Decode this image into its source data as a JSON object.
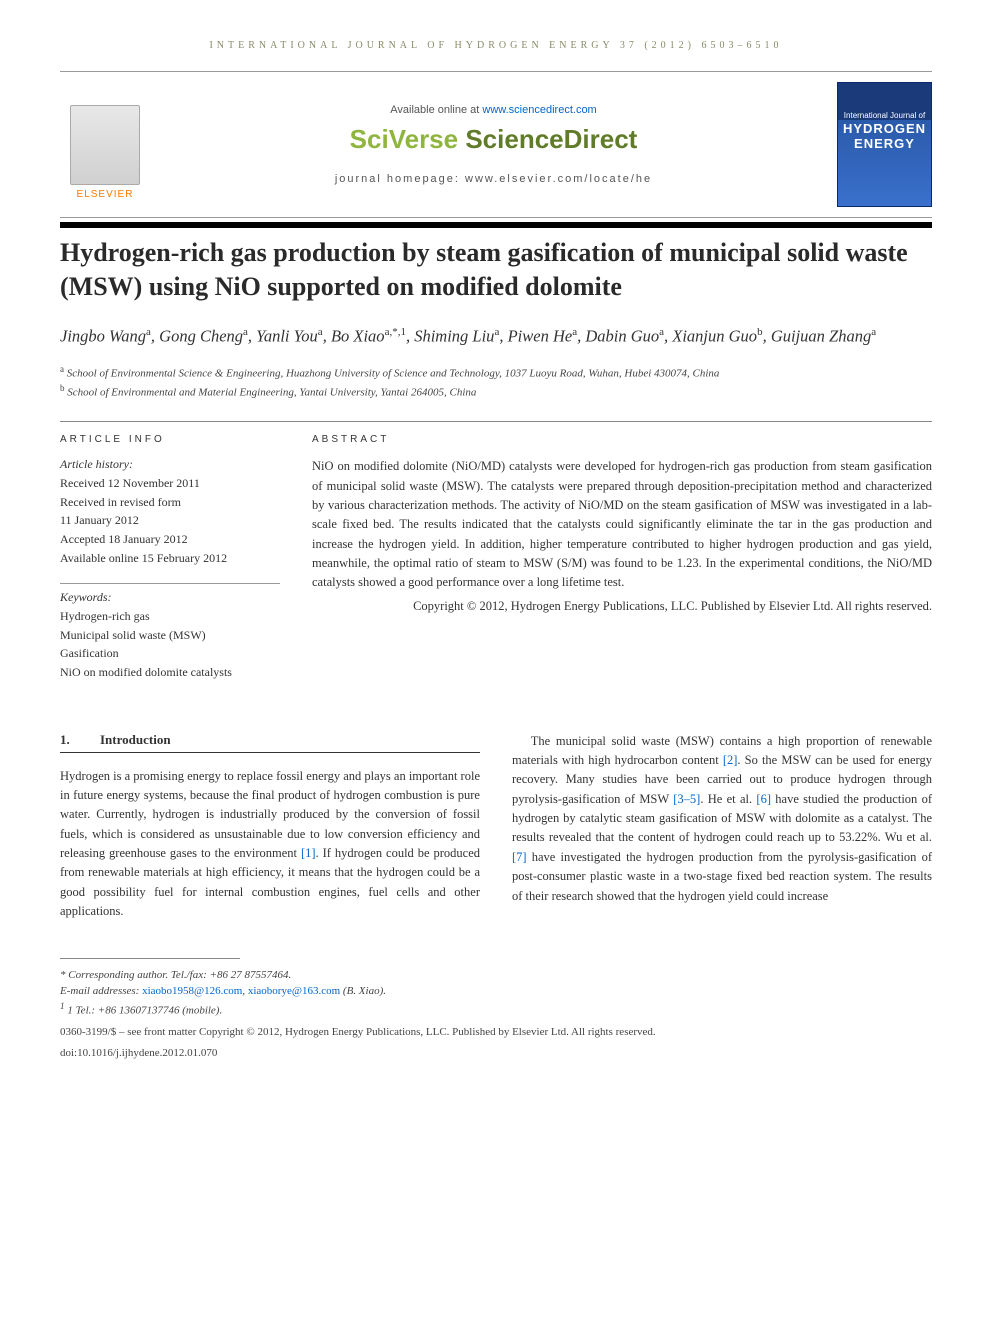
{
  "journal_ref": "INTERNATIONAL JOURNAL OF HYDROGEN ENERGY 37 (2012) 6503–6510",
  "banner": {
    "available": "Available online at ",
    "available_url": "www.sciencedirect.com",
    "brand_a": "SciVerse ",
    "brand_b": "ScienceDirect",
    "homepage": "journal homepage: www.elsevier.com/locate/he",
    "elsevier": "ELSEVIER",
    "cover_small": "International Journal of",
    "cover_big": "HYDROGEN\nENERGY"
  },
  "title": "Hydrogen-rich gas production by steam gasification of municipal solid waste (MSW) using NiO supported on modified dolomite",
  "authors_html": "Jingbo Wang<sup>a</sup>, Gong Cheng<sup>a</sup>, Yanli You<sup>a</sup>, Bo Xiao<sup>a,*,1</sup>, Shiming Liu<sup>a</sup>, Piwen He<sup>a</sup>, Dabin Guo<sup>a</sup>, Xianjun Guo<sup>b</sup>, Guijuan Zhang<sup>a</sup>",
  "affiliations": [
    {
      "sup": "a",
      "text": "School of Environmental Science & Engineering, Huazhong University of Science and Technology, 1037 Luoyu Road, Wuhan, Hubei 430074, China"
    },
    {
      "sup": "b",
      "text": "School of Environmental and Material Engineering, Yantai University, Yantai 264005, China"
    }
  ],
  "info": {
    "heading": "ARTICLE INFO",
    "history_label": "Article history:",
    "history": "Received 12 November 2011\nReceived in revised form\n11 January 2012\nAccepted 18 January 2012\nAvailable online 15 February 2012",
    "keywords_label": "Keywords:",
    "keywords": "Hydrogen-rich gas\nMunicipal solid waste (MSW)\nGasification\nNiO on modified dolomite catalysts"
  },
  "abstract": {
    "heading": "ABSTRACT",
    "text": "NiO on modified dolomite (NiO/MD) catalysts were developed for hydrogen-rich gas production from steam gasification of municipal solid waste (MSW). The catalysts were prepared through deposition-precipitation method and characterized by various characterization methods. The activity of NiO/MD on the steam gasification of MSW was investigated in a lab-scale fixed bed. The results indicated that the catalysts could significantly eliminate the tar in the gas production and increase the hydrogen yield. In addition, higher temperature contributed to higher hydrogen production and gas yield, meanwhile, the optimal ratio of steam to MSW (S/M) was found to be 1.23. In the experimental conditions, the NiO/MD catalysts showed a good performance over a long lifetime test.",
    "copyright": "Copyright © 2012, Hydrogen Energy Publications, LLC. Published by Elsevier Ltd. All rights reserved."
  },
  "section1": {
    "num": "1.",
    "title": "Introduction",
    "col1": "Hydrogen is a promising energy to replace fossil energy and plays an important role in future energy systems, because the final product of hydrogen combustion is pure water. Currently, hydrogen is industrially produced by the conversion of fossil fuels, which is considered as unsustainable due to low conversion efficiency and releasing greenhouse gases to the environment [1]. If hydrogen could be produced from renewable materials at high efficiency, it means that the hydrogen could be a good possibility fuel for internal combustion engines, fuel cells and other applications.",
    "col2": "The municipal solid waste (MSW) contains a high proportion of renewable materials with high hydrocarbon content [2]. So the MSW can be used for energy recovery. Many studies have been carried out to produce hydrogen through pyrolysis-gasification of MSW [3–5]. He et al. [6] have studied the production of hydrogen by catalytic steam gasification of MSW with dolomite as a catalyst. The results revealed that the content of hydrogen could reach up to 53.22%. Wu et al. [7] have investigated the hydrogen production from the pyrolysis-gasification of post-consumer plastic waste in a two-stage fixed bed reaction system. The results of their research showed that the hydrogen yield could increase"
  },
  "footnotes": {
    "corr": "* Corresponding author. Tel./fax: +86 27 87557464.",
    "emails_label": "E-mail addresses: ",
    "email1": "xiaobo1958@126.com",
    "email2": "xiaoborye@163.com",
    "email_suffix": " (B. Xiao).",
    "tel1": "1 Tel.: +86 13607137746 (mobile).",
    "issn": "0360-3199/$ – see front matter Copyright © 2012, Hydrogen Energy Publications, LLC. Published by Elsevier Ltd. All rights reserved.",
    "doi": "doi:10.1016/j.ijhydene.2012.01.070"
  }
}
